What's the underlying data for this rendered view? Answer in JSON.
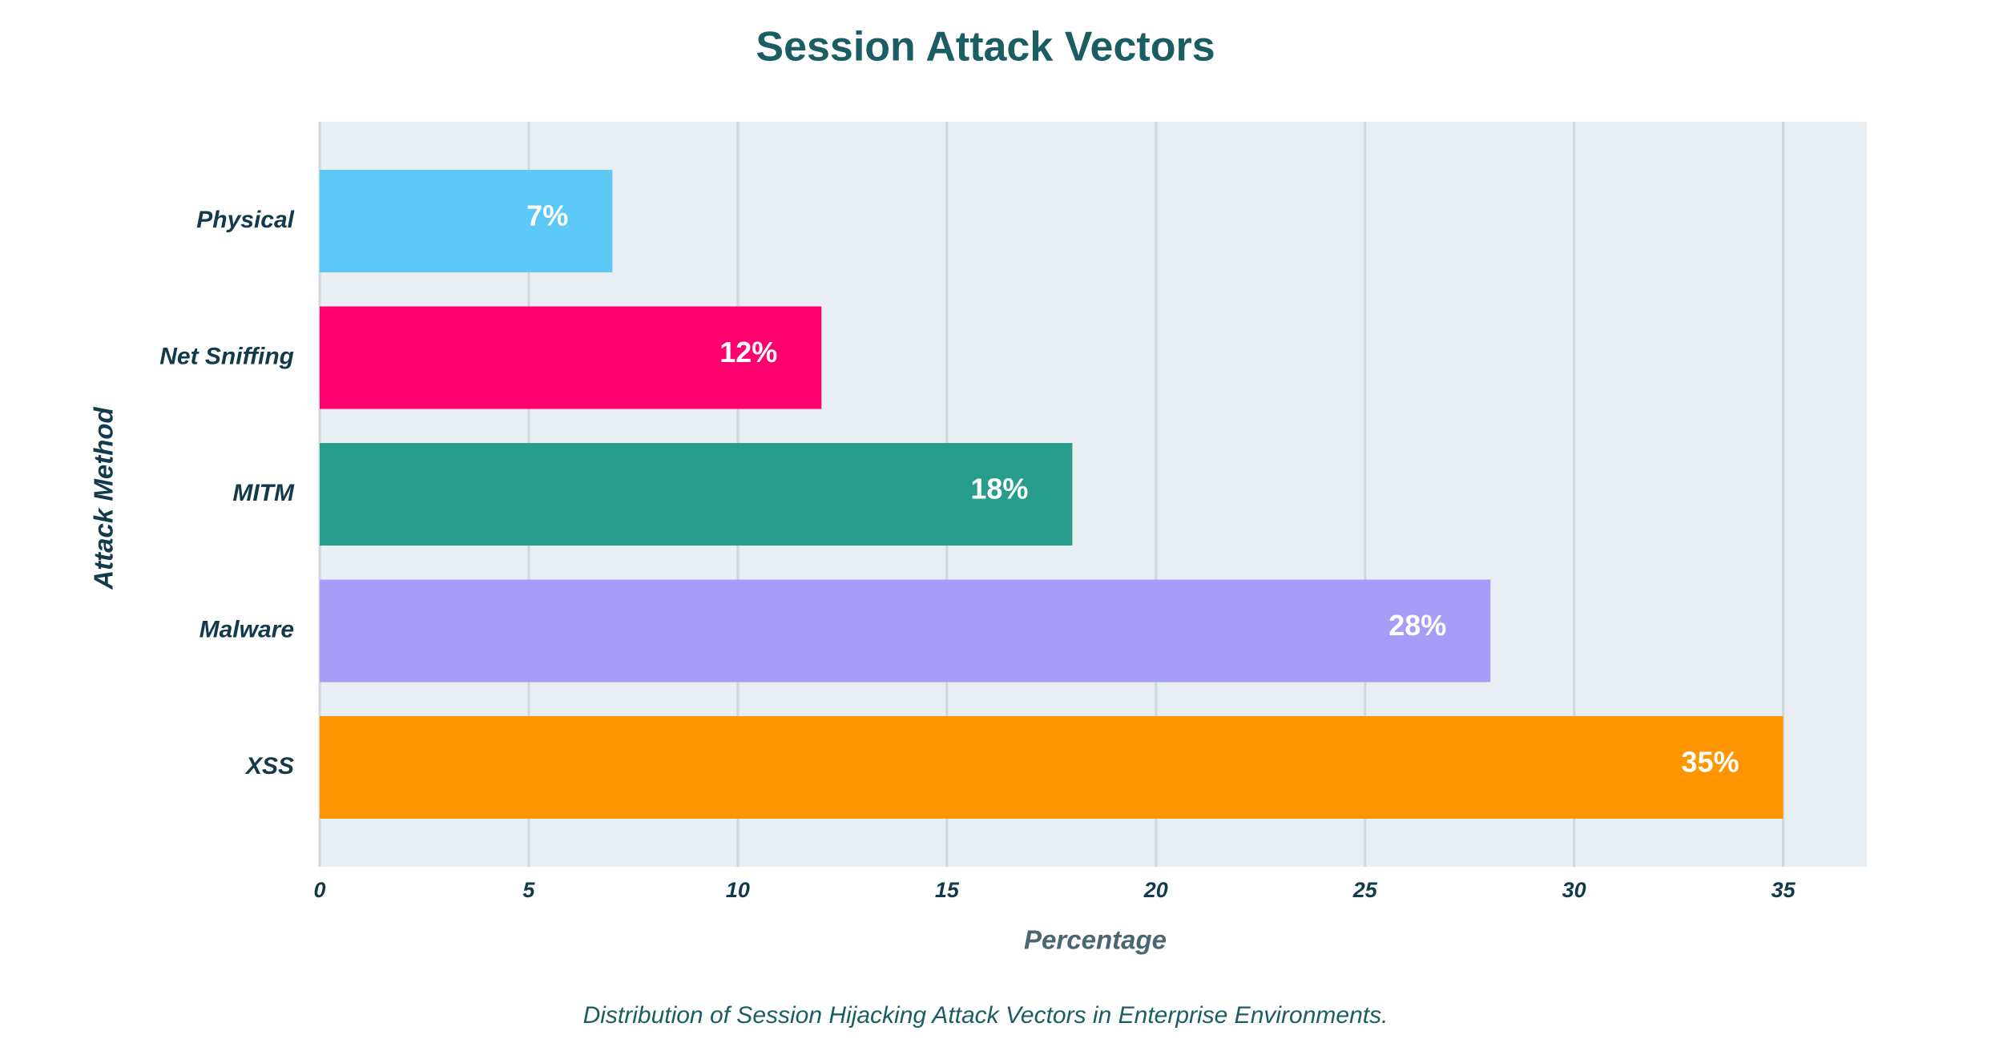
{
  "chart_data": {
    "type": "bar",
    "orientation": "horizontal",
    "title": "Session Attack Vectors",
    "x_label": "Percentage",
    "y_label": "Attack Method",
    "caption": "Distribution of Session Hijacking Attack Vectors in Enterprise Environments.",
    "categories": [
      "Physical",
      "Net Sniffing",
      "MITM",
      "Malware",
      "XSS"
    ],
    "values": [
      7,
      12,
      18,
      28,
      35
    ],
    "value_labels": [
      "7%",
      "12%",
      "18%",
      "28%",
      "35%"
    ],
    "colors": [
      "#5bc8f5",
      "#ff006e",
      "#279d8d",
      "#a89cf9",
      "#ff9500"
    ],
    "xlim": [
      0,
      37
    ],
    "xticks": [
      0,
      5,
      10,
      15,
      20,
      25,
      30,
      35
    ],
    "grid": true
  }
}
